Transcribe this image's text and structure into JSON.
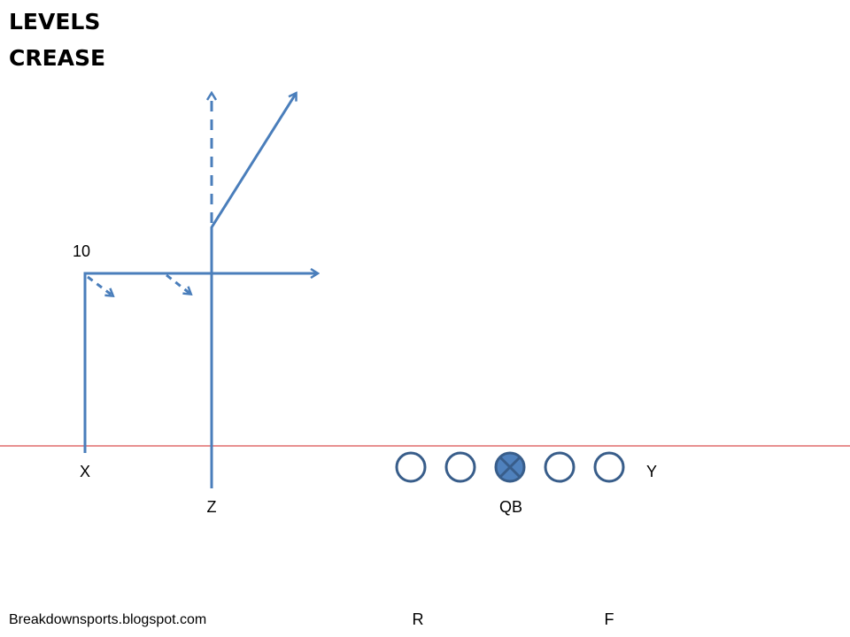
{
  "title_line1": "LEVELS",
  "title_line2": "CREASE",
  "depth_label": "10",
  "players": {
    "x": "X",
    "z": "Z",
    "qb": "QB",
    "y": "Y",
    "r": "R",
    "f": "F"
  },
  "credit": "Breakdownsports.blogspot.com",
  "colors": {
    "route": "#4a7ebb",
    "line_of_scrimmage": "#d02020",
    "lineman_stroke": "#385d8a",
    "qb_fill": "#4f81bd"
  }
}
